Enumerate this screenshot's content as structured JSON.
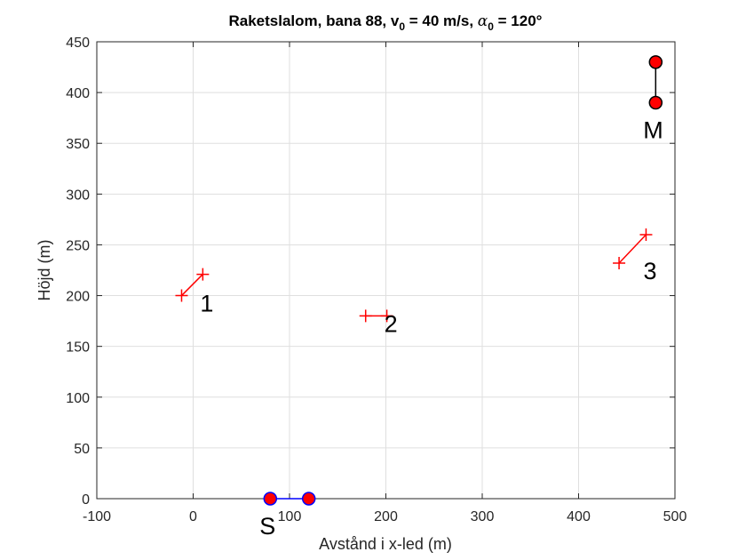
{
  "chart_data": {
    "type": "line",
    "title": {
      "main": "Raketslalom, bana 88, v",
      "v_sub": "0",
      "mid": " = 40 m/s, ",
      "alpha": "α",
      "alpha_sub": "0",
      "end": " = 120°"
    },
    "xlabel": "Avstånd i x-led (m)",
    "ylabel": "Höjd (m)",
    "xlim": [
      -100,
      500
    ],
    "ylim": [
      0,
      450
    ],
    "xticks": [
      -100,
      0,
      100,
      200,
      300,
      400,
      500
    ],
    "yticks": [
      0,
      50,
      100,
      150,
      200,
      250,
      300,
      350,
      400,
      450
    ],
    "grid": true,
    "start": {
      "label": "S",
      "points": [
        [
          80,
          0
        ],
        [
          120,
          0
        ]
      ],
      "line_color": "#0000ff",
      "marker_color": "#ff0000",
      "marker_edge": "#0000ff"
    },
    "goal": {
      "label": "M",
      "points": [
        [
          480,
          390
        ],
        [
          480,
          430
        ]
      ],
      "line_color": "#000000",
      "marker_color": "#ff0000",
      "marker_edge": "#000000"
    },
    "gates": [
      {
        "label": "1",
        "points": [
          [
            -12,
            200
          ],
          [
            10,
            221
          ]
        ]
      },
      {
        "label": "2",
        "points": [
          [
            179,
            180
          ],
          [
            201,
            180
          ]
        ]
      },
      {
        "label": "3",
        "points": [
          [
            442,
            232
          ],
          [
            470,
            260
          ]
        ]
      }
    ],
    "gate_color": "#ff0000"
  }
}
